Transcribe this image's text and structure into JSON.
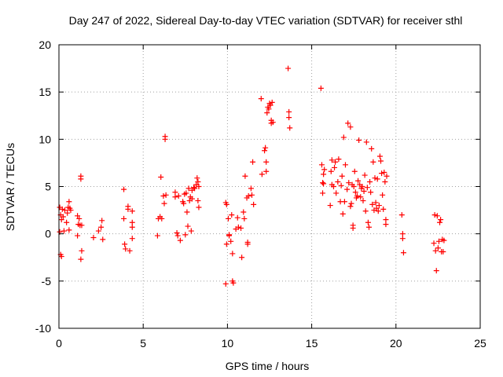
{
  "chart_data": {
    "type": "scatter",
    "title": "Day 247 of 2022, Sidereal Day-to-day VTEC variation (SDTVAR) for receiver sthl",
    "xlabel": "GPS time / hours",
    "ylabel": "SDTVAR / TECUs",
    "xlim": [
      0,
      25
    ],
    "ylim": [
      -10,
      20
    ],
    "xticks": [
      0,
      5,
      10,
      15,
      20,
      25
    ],
    "yticks": [
      -10,
      -5,
      0,
      5,
      10,
      15,
      20
    ],
    "xtick_labels": [
      "0",
      "5",
      "10",
      "15",
      "20",
      "25"
    ],
    "ytick_labels": [
      "-10",
      "-5",
      "0",
      "5",
      "10",
      "15",
      "20"
    ],
    "grid": true,
    "marker": "+",
    "marker_color": "#ff0000",
    "series": [
      {
        "name": "SDTVAR",
        "points": [
          [
            0.05,
            2.8
          ],
          [
            0.1,
            2.0
          ],
          [
            0.15,
            1.5
          ],
          [
            0.05,
            0.2
          ],
          [
            0.1,
            -2.2
          ],
          [
            0.15,
            -2.4
          ],
          [
            0.2,
            2.6
          ],
          [
            0.25,
            1.8
          ],
          [
            0.3,
            0.3
          ],
          [
            0.35,
            2.5
          ],
          [
            0.45,
            1.2
          ],
          [
            0.5,
            2.2
          ],
          [
            0.55,
            2.8
          ],
          [
            0.6,
            3.4
          ],
          [
            0.65,
            2.7
          ],
          [
            0.6,
            0.4
          ],
          [
            0.7,
            2.5
          ],
          [
            1.1,
            1.9
          ],
          [
            1.15,
            1.0
          ],
          [
            1.2,
            1.6
          ],
          [
            1.1,
            -0.2
          ],
          [
            1.25,
            0.9
          ],
          [
            1.3,
            6.1
          ],
          [
            1.3,
            5.8
          ],
          [
            1.35,
            -1.8
          ],
          [
            1.3,
            -2.7
          ],
          [
            1.35,
            0.9
          ],
          [
            2.05,
            -0.4
          ],
          [
            2.35,
            0.3
          ],
          [
            2.5,
            0.7
          ],
          [
            2.55,
            1.4
          ],
          [
            2.6,
            -0.6
          ],
          [
            3.85,
            4.7
          ],
          [
            3.85,
            1.6
          ],
          [
            3.9,
            -1.1
          ],
          [
            3.95,
            -1.6
          ],
          [
            4.1,
            2.9
          ],
          [
            4.1,
            2.6
          ],
          [
            4.2,
            -1.8
          ],
          [
            4.35,
            2.4
          ],
          [
            4.35,
            1.2
          ],
          [
            4.35,
            0.7
          ],
          [
            4.35,
            -0.5
          ],
          [
            5.85,
            -0.2
          ],
          [
            5.9,
            1.6
          ],
          [
            6.0,
            1.8
          ],
          [
            6.05,
            6.0
          ],
          [
            6.1,
            1.6
          ],
          [
            6.2,
            4.0
          ],
          [
            6.25,
            3.2
          ],
          [
            6.3,
            10.3
          ],
          [
            6.3,
            10.0
          ],
          [
            6.35,
            4.1
          ],
          [
            6.9,
            4.4
          ],
          [
            6.9,
            3.9
          ],
          [
            7.0,
            0.1
          ],
          [
            7.05,
            -0.2
          ],
          [
            7.1,
            4.0
          ],
          [
            7.2,
            -0.7
          ],
          [
            7.35,
            3.4
          ],
          [
            7.4,
            3.2
          ],
          [
            7.45,
            4.2
          ],
          [
            7.5,
            -0.1
          ],
          [
            7.55,
            4.3
          ],
          [
            7.6,
            2.3
          ],
          [
            7.65,
            0.8
          ],
          [
            7.7,
            4.8
          ],
          [
            7.75,
            3.5
          ],
          [
            7.8,
            3.9
          ],
          [
            7.85,
            0.3
          ],
          [
            7.9,
            4.6
          ],
          [
            7.9,
            3.7
          ],
          [
            8.0,
            4.9
          ],
          [
            8.05,
            4.8
          ],
          [
            8.15,
            5.2
          ],
          [
            8.2,
            5.9
          ],
          [
            8.25,
            5.5
          ],
          [
            8.25,
            3.5
          ],
          [
            8.3,
            2.8
          ],
          [
            8.3,
            5.0
          ],
          [
            9.9,
            -5.3
          ],
          [
            9.9,
            3.3
          ],
          [
            9.95,
            3.1
          ],
          [
            9.95,
            -1.1
          ],
          [
            10.05,
            1.6
          ],
          [
            10.1,
            -0.1
          ],
          [
            10.1,
            -0.2
          ],
          [
            10.2,
            -0.8
          ],
          [
            10.25,
            2.0
          ],
          [
            10.3,
            -2.1
          ],
          [
            10.3,
            -5.0
          ],
          [
            10.35,
            -5.2
          ],
          [
            10.5,
            0.5
          ],
          [
            10.6,
            1.7
          ],
          [
            10.65,
            0.7
          ],
          [
            10.8,
            0.6
          ],
          [
            10.85,
            -2.5
          ],
          [
            10.95,
            2.3
          ],
          [
            11.0,
            1.6
          ],
          [
            11.05,
            6.1
          ],
          [
            11.15,
            3.8
          ],
          [
            11.2,
            -0.9
          ],
          [
            11.2,
            -1.1
          ],
          [
            11.25,
            4.0
          ],
          [
            11.4,
            4.8
          ],
          [
            11.45,
            4.1
          ],
          [
            11.5,
            7.6
          ],
          [
            11.55,
            3.1
          ],
          [
            12.0,
            14.3
          ],
          [
            12.05,
            6.3
          ],
          [
            12.2,
            8.8
          ],
          [
            12.25,
            9.1
          ],
          [
            12.3,
            6.6
          ],
          [
            12.3,
            7.6
          ],
          [
            12.35,
            12.8
          ],
          [
            12.4,
            13.4
          ],
          [
            12.45,
            13.2
          ],
          [
            12.5,
            13.8
          ],
          [
            12.55,
            13.6
          ],
          [
            12.6,
            12.0
          ],
          [
            12.6,
            11.7
          ],
          [
            12.65,
            13.9
          ],
          [
            12.7,
            11.8
          ],
          [
            13.6,
            17.5
          ],
          [
            13.65,
            12.9
          ],
          [
            13.65,
            12.3
          ],
          [
            13.7,
            11.2
          ],
          [
            15.55,
            15.4
          ],
          [
            15.6,
            7.3
          ],
          [
            15.65,
            5.4
          ],
          [
            15.65,
            4.3
          ],
          [
            15.7,
            5.3
          ],
          [
            15.7,
            6.3
          ],
          [
            15.75,
            6.8
          ],
          [
            16.1,
            3.0
          ],
          [
            16.15,
            6.6
          ],
          [
            16.2,
            7.8
          ],
          [
            16.2,
            5.2
          ],
          [
            16.3,
            5.0
          ],
          [
            16.35,
            7.0
          ],
          [
            16.4,
            7.6
          ],
          [
            16.45,
            4.3
          ],
          [
            16.55,
            5.5
          ],
          [
            16.6,
            7.9
          ],
          [
            16.7,
            3.4
          ],
          [
            16.75,
            5.1
          ],
          [
            16.8,
            6.1
          ],
          [
            16.85,
            2.1
          ],
          [
            16.9,
            10.2
          ],
          [
            16.95,
            3.4
          ],
          [
            17.0,
            7.3
          ],
          [
            17.1,
            4.7
          ],
          [
            17.15,
            11.7
          ],
          [
            17.2,
            5.4
          ],
          [
            17.3,
            11.3
          ],
          [
            17.3,
            2.9
          ],
          [
            17.35,
            3.2
          ],
          [
            17.4,
            5.2
          ],
          [
            17.45,
            0.9
          ],
          [
            17.45,
            0.6
          ],
          [
            17.5,
            5.0
          ],
          [
            17.55,
            6.6
          ],
          [
            17.6,
            4.4
          ],
          [
            17.65,
            3.8
          ],
          [
            17.7,
            4.0
          ],
          [
            17.75,
            5.6
          ],
          [
            17.8,
            9.9
          ],
          [
            17.85,
            5.2
          ],
          [
            17.9,
            3.9
          ],
          [
            17.95,
            4.8
          ],
          [
            18.0,
            5.0
          ],
          [
            18.05,
            3.5
          ],
          [
            18.1,
            4.5
          ],
          [
            18.15,
            6.2
          ],
          [
            18.2,
            2.4
          ],
          [
            18.25,
            9.7
          ],
          [
            18.3,
            4.9
          ],
          [
            18.35,
            1.2
          ],
          [
            18.4,
            0.7
          ],
          [
            18.45,
            5.5
          ],
          [
            18.5,
            4.4
          ],
          [
            18.55,
            9.0
          ],
          [
            18.6,
            3.1
          ],
          [
            18.65,
            7.6
          ],
          [
            18.7,
            2.5
          ],
          [
            18.75,
            5.9
          ],
          [
            18.8,
            3.3
          ],
          [
            18.85,
            2.7
          ],
          [
            18.9,
            5.8
          ],
          [
            18.95,
            2.4
          ],
          [
            19.0,
            3.0
          ],
          [
            19.05,
            8.2
          ],
          [
            19.1,
            7.7
          ],
          [
            19.15,
            6.4
          ],
          [
            19.2,
            4.1
          ],
          [
            19.25,
            2.6
          ],
          [
            19.3,
            6.5
          ],
          [
            19.35,
            5.5
          ],
          [
            19.4,
            1.5
          ],
          [
            19.4,
            1.0
          ],
          [
            19.45,
            6.1
          ],
          [
            20.35,
            2.0
          ],
          [
            20.4,
            0.0
          ],
          [
            20.4,
            -0.5
          ],
          [
            20.45,
            -2.0
          ],
          [
            22.25,
            -1.0
          ],
          [
            22.3,
            2.0
          ],
          [
            22.35,
            -1.8
          ],
          [
            22.4,
            -3.9
          ],
          [
            22.45,
            1.9
          ],
          [
            22.5,
            -1.5
          ],
          [
            22.55,
            -0.8
          ],
          [
            22.6,
            1.2
          ],
          [
            22.65,
            1.5
          ],
          [
            22.7,
            -1.9
          ],
          [
            22.75,
            -0.6
          ],
          [
            22.8,
            -1.9
          ],
          [
            22.85,
            -0.7
          ]
        ]
      }
    ]
  }
}
